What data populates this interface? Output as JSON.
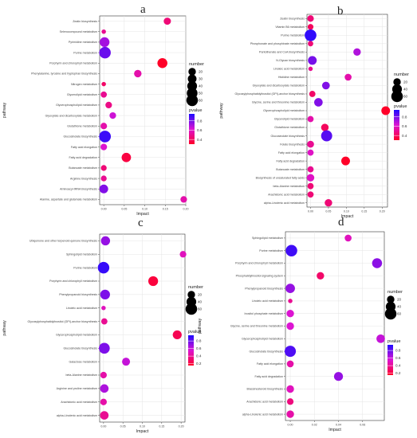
{
  "figure": {
    "letters": [
      "a",
      "b",
      "c",
      "d"
    ]
  },
  "chart_data": [
    {
      "type": "scatter",
      "panel": "a",
      "xlabel": "Impact",
      "ylabel": "pathway",
      "xlim": [
        -0.01,
        0.2
      ],
      "xticks": [
        "0.00",
        "0.05",
        "0.10",
        "0.15",
        "0.20"
      ],
      "xtick_values": [
        0,
        0.05,
        0.1,
        0.15,
        0.2
      ],
      "legend_number": {
        "title": "number",
        "values": [
          20,
          30,
          40,
          50,
          60
        ]
      },
      "legend_pvalue": {
        "title": "pvalue",
        "values": [
          0.8,
          0.6,
          0.4
        ],
        "range": [
          0.3,
          0.95
        ]
      },
      "points": [
        {
          "pathway": "Zeatin biosynthesis",
          "impact": 0.155,
          "number": 18,
          "pvalue": 0.45
        },
        {
          "pathway": "Selenocompound metabolism",
          "impact": 0.0,
          "number": 4,
          "pvalue": 0.5
        },
        {
          "pathway": "Pyrimidine metabolism",
          "impact": 0.002,
          "number": 40,
          "pvalue": 0.72
        },
        {
          "pathway": "Purine metabolism",
          "impact": 0.003,
          "number": 60,
          "pvalue": 0.82
        },
        {
          "pathway": "Porphyrin and chlorophyll metabolism",
          "impact": 0.143,
          "number": 42,
          "pvalue": 0.2
        },
        {
          "pathway": "Phenylalanine, tyrosine and tryptophan biosynthesis",
          "impact": 0.083,
          "number": 20,
          "pvalue": 0.55
        },
        {
          "pathway": "Nitrogen metabolism",
          "impact": 0.0,
          "number": 4,
          "pvalue": 0.42
        },
        {
          "pathway": "Glycerolipid metabolism",
          "impact": 0.0,
          "number": 12,
          "pvalue": 0.5
        },
        {
          "pathway": "Glycerophospholipid metabolism",
          "impact": 0.012,
          "number": 14,
          "pvalue": 0.48
        },
        {
          "pathway": "Glyoxylate and dicarboxylate metabolism",
          "impact": 0.022,
          "number": 14,
          "pvalue": 0.65
        },
        {
          "pathway": "Glutathione metabolism",
          "impact": 0.0,
          "number": 14,
          "pvalue": 0.55
        },
        {
          "pathway": "Glucosinolate biosynthesis",
          "impact": 0.003,
          "number": 62,
          "pvalue": 0.9
        },
        {
          "pathway": "Fatty acid elongation",
          "impact": 0.0,
          "number": 14,
          "pvalue": 0.62
        },
        {
          "pathway": "Fatty acid degradation",
          "impact": 0.055,
          "number": 36,
          "pvalue": 0.35
        },
        {
          "pathway": "Butanoate metabolism",
          "impact": 0.0,
          "number": 10,
          "pvalue": 0.45
        },
        {
          "pathway": "Arginine biosynthesis",
          "impact": 0.0,
          "number": 10,
          "pvalue": 0.5
        },
        {
          "pathway": "Aminoacyl-tRNA biosynthesis",
          "impact": 0.0,
          "number": 30,
          "pvalue": 0.78
        },
        {
          "pathway": "Alanine, aspartate and glutamate metabolism",
          "impact": 0.195,
          "number": 14,
          "pvalue": 0.55
        }
      ]
    },
    {
      "type": "scatter",
      "panel": "b",
      "xlabel": "Impact",
      "ylabel": "pathway",
      "xlim": [
        -0.01,
        0.215
      ],
      "xticks": [
        "0.00",
        "0.05",
        "0.10",
        "0.15",
        "0.20"
      ],
      "xtick_values": [
        0,
        0.05,
        0.1,
        0.15,
        0.2
      ],
      "legend_number": {
        "title": "number",
        "values": [
          20,
          40,
          60
        ]
      },
      "legend_pvalue": {
        "title": "pvalue",
        "values": [
          0.8,
          0.6,
          0.4
        ],
        "range": [
          0.3,
          0.95
        ]
      },
      "points": [
        {
          "pathway": "Zeatin biosynthesis",
          "impact": 0.0,
          "number": 14,
          "pvalue": 0.45
        },
        {
          "pathway": "Vitamin B6 metabolism",
          "impact": 0.0,
          "number": 10,
          "pvalue": 0.4
        },
        {
          "pathway": "Purine metabolism",
          "impact": 0.0,
          "number": 62,
          "pvalue": 0.92
        },
        {
          "pathway": "Phosphonate and phosphinate metabolism",
          "impact": 0.0,
          "number": 8,
          "pvalue": 0.45
        },
        {
          "pathway": "Pantothenate and CoA biosynthesis",
          "impact": 0.13,
          "number": 20,
          "pvalue": 0.7
        },
        {
          "pathway": "N-Glycan biosynthesis",
          "impact": 0.005,
          "number": 30,
          "pvalue": 0.8
        },
        {
          "pathway": "Linoleic acid metabolism",
          "impact": 0.0,
          "number": 4,
          "pvalue": 0.5
        },
        {
          "pathway": "Histidine metabolism",
          "impact": 0.105,
          "number": 16,
          "pvalue": 0.55
        },
        {
          "pathway": "Glyoxylate and dicarboxylate metabolism",
          "impact": 0.043,
          "number": 22,
          "pvalue": 0.78
        },
        {
          "pathway": "Glycosylphosphatidylinositol (GPI)-anchor biosynthesis",
          "impact": 0.005,
          "number": 12,
          "pvalue": 0.42
        },
        {
          "pathway": "Glycine, serine and threonine metabolism",
          "impact": 0.022,
          "number": 28,
          "pvalue": 0.78
        },
        {
          "pathway": "Glycerophospholipid metabolism",
          "impact": 0.21,
          "number": 30,
          "pvalue": 0.3
        },
        {
          "pathway": "Glycerolipid metabolism",
          "impact": 0.0,
          "number": 12,
          "pvalue": 0.55
        },
        {
          "pathway": "Glutathione metabolism",
          "impact": 0.04,
          "number": 20,
          "pvalue": 0.4
        },
        {
          "pathway": "Glucosinolate biosynthesis",
          "impact": 0.045,
          "number": 54,
          "pvalue": 0.85
        },
        {
          "pathway": "Folate biosynthesis",
          "impact": 0.0,
          "number": 16,
          "pvalue": 0.5
        },
        {
          "pathway": "Fatty acid elongation",
          "impact": 0.0,
          "number": 12,
          "pvalue": 0.6
        },
        {
          "pathway": "Fatty acid degradation",
          "impact": 0.098,
          "number": 30,
          "pvalue": 0.28
        },
        {
          "pathway": "Butanoate metabolism",
          "impact": 0.0,
          "number": 12,
          "pvalue": 0.5
        },
        {
          "pathway": "Biosynthesis of unsaturated fatty acids",
          "impact": 0.0,
          "number": 20,
          "pvalue": 0.6
        },
        {
          "pathway": "beta-Alanine metabolism",
          "impact": 0.0,
          "number": 12,
          "pvalue": 0.45
        },
        {
          "pathway": "Arachidonic acid metabolism",
          "impact": 0.0,
          "number": 12,
          "pvalue": 0.45
        },
        {
          "pathway": "alpha-Linolenic acid metabolism",
          "impact": 0.05,
          "number": 20,
          "pvalue": 0.45
        }
      ]
    },
    {
      "type": "scatter",
      "panel": "c",
      "xlabel": "Impact",
      "ylabel": "pathway",
      "xlim": [
        -0.01,
        0.21
      ],
      "xticks": [
        "0.00",
        "0.05",
        "0.10",
        "0.15",
        "0.20"
      ],
      "xtick_values": [
        0,
        0.05,
        0.1,
        0.15,
        0.2
      ],
      "legend_number": {
        "title": "number",
        "values": [
          20,
          40,
          60
        ]
      },
      "legend_pvalue": {
        "title": "pvalue",
        "values": [
          0.8,
          0.6,
          0.4,
          0.2
        ],
        "range": [
          0.15,
          0.95
        ]
      },
      "points": [
        {
          "pathway": "Ubiquinone and other terpenoid-quinone biosynthesis",
          "impact": 0.005,
          "number": 34,
          "pvalue": 0.7
        },
        {
          "pathway": "Sphingolipid metabolism",
          "impact": 0.205,
          "number": 14,
          "pvalue": 0.5
        },
        {
          "pathway": "Purine metabolism",
          "impact": 0.0,
          "number": 60,
          "pvalue": 0.9
        },
        {
          "pathway": "Porphyrin and chlorophyll metabolism",
          "impact": 0.128,
          "number": 40,
          "pvalue": 0.2
        },
        {
          "pathway": "Phenylpropanoid biosynthesis",
          "impact": 0.004,
          "number": 40,
          "pvalue": 0.75
        },
        {
          "pathway": "Linoleic acid metabolism",
          "impact": 0.0,
          "number": 4,
          "pvalue": 0.5
        },
        {
          "pathway": "Glycosylphosphatidylinositol (GPI)-anchor biosynthesis",
          "impact": 0.002,
          "number": 12,
          "pvalue": 0.4
        },
        {
          "pathway": "Glycerophospholipid metabolism",
          "impact": 0.19,
          "number": 32,
          "pvalue": 0.25
        },
        {
          "pathway": "Glucosinolate biosynthesis",
          "impact": 0.002,
          "number": 52,
          "pvalue": 0.75
        },
        {
          "pathway": "Galactose metabolism",
          "impact": 0.058,
          "number": 24,
          "pvalue": 0.6
        },
        {
          "pathway": "beta-Alanine metabolism",
          "impact": 0.0,
          "number": 14,
          "pvalue": 0.45
        },
        {
          "pathway": "Arginine and proline metabolism",
          "impact": 0.002,
          "number": 28,
          "pvalue": 0.65
        },
        {
          "pathway": "Arachidonic acid metabolism",
          "impact": 0.0,
          "number": 14,
          "pvalue": 0.45
        },
        {
          "pathway": "alpha-Linolenic acid metabolism",
          "impact": 0.002,
          "number": 28,
          "pvalue": 0.4
        }
      ]
    },
    {
      "type": "scatter",
      "panel": "d",
      "xlabel": "Impact",
      "ylabel": "pathway",
      "xlim": [
        -0.004,
        0.078
      ],
      "xticks": [
        "0.00",
        "0.02",
        "0.04",
        "0.06"
      ],
      "xtick_values": [
        0,
        0.02,
        0.04,
        0.06
      ],
      "legend_number": {
        "title": "number",
        "values": [
          20,
          40,
          60
        ]
      },
      "legend_pvalue": {
        "title": "pvalue",
        "values": [
          0.8,
          0.6,
          0.4,
          0.2
        ],
        "range": [
          0.15,
          0.95
        ]
      },
      "points": [
        {
          "pathway": "Sphingolipid metabolism",
          "impact": 0.048,
          "number": 16,
          "pvalue": 0.5
        },
        {
          "pathway": "Purine metabolism",
          "impact": 0.001,
          "number": 60,
          "pvalue": 0.88
        },
        {
          "pathway": "Porphyrin and chlorophyll metabolism",
          "impact": 0.072,
          "number": 42,
          "pvalue": 0.72
        },
        {
          "pathway": "Phosphatidylinositol signaling system",
          "impact": 0.025,
          "number": 20,
          "pvalue": 0.3
        },
        {
          "pathway": "Phenylpropanoid biosynthesis",
          "impact": 0.0,
          "number": 36,
          "pvalue": 0.7
        },
        {
          "pathway": "Linoleic acid metabolism",
          "impact": 0.0,
          "number": 4,
          "pvalue": 0.4
        },
        {
          "pathway": "Inositol phosphate metabolism",
          "impact": 0.0,
          "number": 20,
          "pvalue": 0.55
        },
        {
          "pathway": "Glycine, serine and threonine metabolism",
          "impact": 0.0,
          "number": 20,
          "pvalue": 0.55
        },
        {
          "pathway": "Glycerophospholipid metabolism",
          "impact": 0.075,
          "number": 28,
          "pvalue": 0.6
        },
        {
          "pathway": "Glucosinolate biosynthesis",
          "impact": 0.0,
          "number": 56,
          "pvalue": 0.85
        },
        {
          "pathway": "Fatty acid elongation",
          "impact": 0.0,
          "number": 16,
          "pvalue": 0.45
        },
        {
          "pathway": "Fatty acid degradation",
          "impact": 0.04,
          "number": 32,
          "pvalue": 0.7
        },
        {
          "pathway": "Brassinosteroid biosynthesis",
          "impact": 0.0,
          "number": 20,
          "pvalue": 0.5
        },
        {
          "pathway": "Arachidonic acid metabolism",
          "impact": 0.0,
          "number": 14,
          "pvalue": 0.35
        },
        {
          "pathway": "alpha-Linolenic acid metabolism",
          "impact": 0.0,
          "number": 20,
          "pvalue": 0.45
        }
      ]
    }
  ]
}
